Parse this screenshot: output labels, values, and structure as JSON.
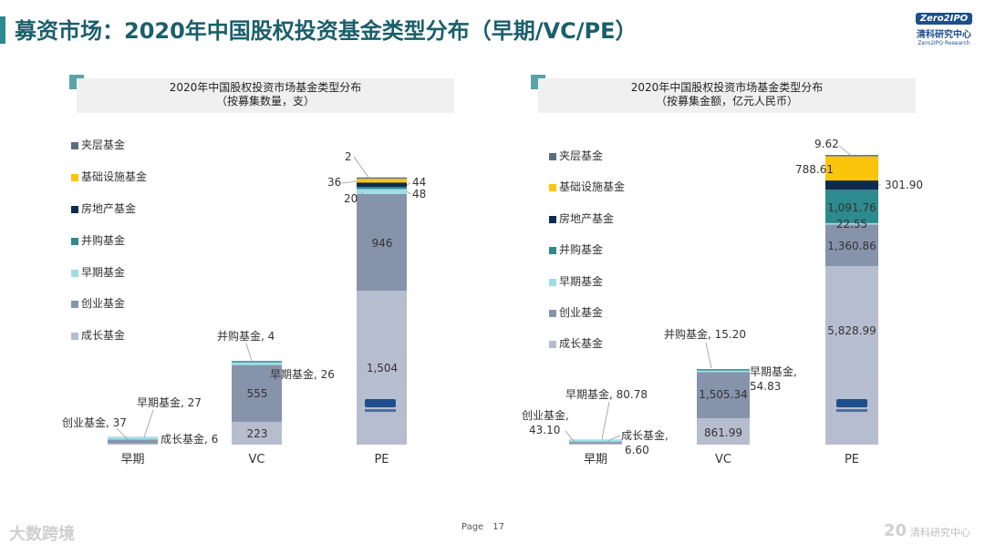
{
  "title": "募资市场：2020年中国股权投资基金类型分布（早期/VC/PE）",
  "watermark": "ZERO2IPO RESEARCH",
  "logo": {
    "box": "Zero2IPO",
    "cn": "清科研究中心",
    "en": "Zero2IPO Research"
  },
  "footer": {
    "page_label": "Page",
    "page_number": "17",
    "left_brand": "大数跨境",
    "right_brand": "清科研究中心",
    "right_mark": "20"
  },
  "colors": {
    "夹层基金": "#5c6c82",
    "基础设施基金": "#fbc50c",
    "房地产基金": "#0e2b4f",
    "并购基金": "#2d8a8e",
    "早期基金": "#9fdde6",
    "创业基金": "#8793ab",
    "成长基金": "#b6bdcf"
  },
  "chart_data": [
    {
      "type": "bar",
      "stacked": true,
      "title": "2020年中国股权投资市场基金类型分布",
      "subtitle": "（按募集数量，支）",
      "categories": [
        "早期",
        "VC",
        "PE"
      ],
      "legend": [
        "夹层基金",
        "基础设施基金",
        "房地产基金",
        "并购基金",
        "早期基金",
        "创业基金",
        "成长基金"
      ],
      "series": [
        {
          "name": "成长基金",
          "values": [
            6,
            223,
            1504
          ]
        },
        {
          "name": "创业基金",
          "values": [
            37,
            555,
            946
          ]
        },
        {
          "name": "早期基金",
          "values": [
            27,
            26,
            48
          ]
        },
        {
          "name": "并购基金",
          "values": [
            0,
            4,
            20
          ]
        },
        {
          "name": "房地产基金",
          "values": [
            0,
            0,
            44
          ]
        },
        {
          "name": "基础设施基金",
          "values": [
            0,
            0,
            36
          ]
        },
        {
          "name": "夹层基金",
          "values": [
            0,
            0,
            2
          ]
        }
      ],
      "labels": {
        "early_growth": "成长基金, 6",
        "early_venture": "创业基金, 37",
        "early_early": "早期基金, 27",
        "vc_growth": "223",
        "vc_venture": "555",
        "vc_early": "早期基金, 26",
        "vc_ma": "并购基金, 4",
        "pe_growth": "1,504",
        "pe_venture": "946",
        "pe_early": "48",
        "pe_ma": "20",
        "pe_re": "44",
        "pe_infra": "36",
        "pe_mezz": "2"
      }
    },
    {
      "type": "bar",
      "stacked": true,
      "title": "2020年中国股权投资市场基金类型分布",
      "subtitle": "（按募集金额，亿元人民币）",
      "categories": [
        "早期",
        "VC",
        "PE"
      ],
      "legend": [
        "夹层基金",
        "基础设施基金",
        "房地产基金",
        "并购基金",
        "早期基金",
        "创业基金",
        "成长基金"
      ],
      "series": [
        {
          "name": "成长基金",
          "values": [
            6.6,
            861.99,
            5828.99
          ]
        },
        {
          "name": "创业基金",
          "values": [
            43.1,
            1505.34,
            1360.86
          ]
        },
        {
          "name": "早期基金",
          "values": [
            80.78,
            54.83,
            22.55
          ]
        },
        {
          "name": "并购基金",
          "values": [
            0,
            15.2,
            1091.76
          ]
        },
        {
          "name": "房地产基金",
          "values": [
            0,
            0,
            301.9
          ]
        },
        {
          "name": "基础设施基金",
          "values": [
            0,
            0,
            788.61
          ]
        },
        {
          "name": "夹层基金",
          "values": [
            0,
            0,
            9.62
          ]
        }
      ],
      "labels": {
        "early_growth_a": "成长基金,",
        "early_growth_b": "6.60",
        "early_venture_a": "创业基金,",
        "early_venture_b": "43.10",
        "early_early": "早期基金, 80.78",
        "vc_growth": "861.99",
        "vc_venture": "1,505.34",
        "vc_early_a": "早期基金,",
        "vc_early_b": "54.83",
        "vc_ma": "并购基金, 15.20",
        "pe_growth": "5,828.99",
        "pe_venture": "1,360.86",
        "pe_early": "22.55",
        "pe_ma": "1,091.76",
        "pe_re": "301.90",
        "pe_infra": "788.61",
        "pe_mezz": "9.62"
      }
    }
  ]
}
